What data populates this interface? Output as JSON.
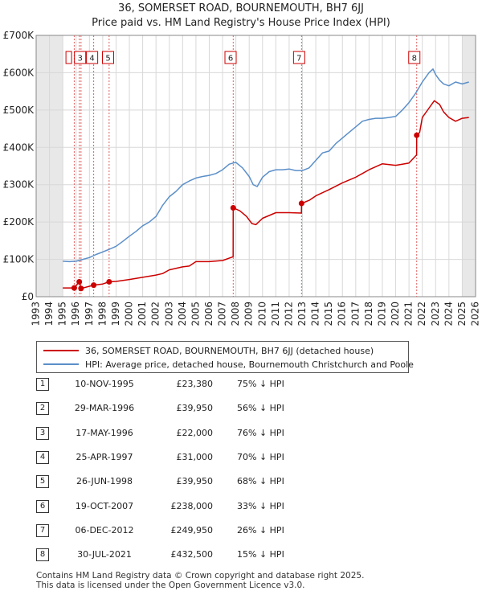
{
  "chart_data": {
    "type": "line",
    "title": "36, SOMERSET ROAD, BOURNEMOUTH, BH7 6JJ",
    "subtitle": "Price paid vs. HM Land Registry's House Price Index (HPI)",
    "xlim": [
      1993,
      2026
    ],
    "ylim": [
      0,
      700000
    ],
    "x_ticks": [
      1993,
      1994,
      1995,
      1996,
      1997,
      1998,
      1999,
      2000,
      2001,
      2002,
      2003,
      2004,
      2005,
      2006,
      2007,
      2008,
      2009,
      2010,
      2011,
      2012,
      2013,
      2014,
      2015,
      2016,
      2017,
      2018,
      2019,
      2020,
      2021,
      2022,
      2023,
      2024,
      2025,
      2026
    ],
    "y_ticks": [
      {
        "value": 0,
        "label": "£0"
      },
      {
        "value": 100000,
        "label": "£100K"
      },
      {
        "value": 200000,
        "label": "£200K"
      },
      {
        "value": 300000,
        "label": "£300K"
      },
      {
        "value": 400000,
        "label": "£400K"
      },
      {
        "value": 500000,
        "label": "£500K"
      },
      {
        "value": 600000,
        "label": "£600K"
      },
      {
        "value": 700000,
        "label": "£700K"
      }
    ],
    "series": [
      {
        "name": "36, SOMERSET ROAD, BOURNEMOUTH, BH7 6JJ (detached house)",
        "color": "#cc0000",
        "x": [
          1995.0,
          1995.86,
          1996.24,
          1996.37,
          1997.32,
          1998.0,
          1998.48,
          1999.0,
          2000.0,
          2001.0,
          2002.0,
          2002.5,
          2003.0,
          2004.0,
          2004.5,
          2005.0,
          2006.0,
          2007.0,
          2007.79,
          2007.8,
          2008.3,
          2008.8,
          2009.2,
          2009.5,
          2010.0,
          2011.0,
          2012.0,
          2012.92,
          2012.93,
          2013.5,
          2014.0,
          2015.0,
          2016.0,
          2017.0,
          2017.5,
          2018.0,
          2019.0,
          2020.0,
          2020.5,
          2021.0,
          2021.57,
          2021.58,
          2021.8,
          2022.0,
          2022.5,
          2022.9,
          2023.3,
          2023.6,
          2024.0,
          2024.5,
          2025.0,
          2025.5
        ],
        "values": [
          23380,
          23380,
          39950,
          22000,
          31000,
          34000,
          39950,
          41000,
          46000,
          52000,
          58000,
          62000,
          72000,
          80000,
          82000,
          94000,
          94000,
          97000,
          107000,
          238000,
          230000,
          215000,
          196000,
          193000,
          210000,
          225000,
          225000,
          224000,
          249950,
          258000,
          270000,
          287000,
          305000,
          320000,
          330000,
          340000,
          356000,
          352000,
          355000,
          358000,
          380000,
          432500,
          440000,
          480000,
          505000,
          525000,
          515000,
          495000,
          480000,
          470000,
          478000,
          480000
        ]
      },
      {
        "name": "HPI: Average price, detached house, Bournemouth Christchurch and Poole",
        "color": "#5b8fc9",
        "x": [
          1995.0,
          1995.5,
          1996.0,
          1996.5,
          1997.0,
          1997.5,
          1998.0,
          1998.5,
          1999.0,
          1999.5,
          2000.0,
          2000.5,
          2001.0,
          2001.5,
          2002.0,
          2002.5,
          2003.0,
          2003.5,
          2004.0,
          2004.5,
          2005.0,
          2005.5,
          2006.0,
          2006.5,
          2007.0,
          2007.5,
          2008.0,
          2008.5,
          2009.0,
          2009.3,
          2009.6,
          2010.0,
          2010.5,
          2011.0,
          2011.5,
          2012.0,
          2012.5,
          2013.0,
          2013.5,
          2014.0,
          2014.5,
          2015.0,
          2015.5,
          2016.0,
          2016.5,
          2017.0,
          2017.5,
          2018.0,
          2018.5,
          2019.0,
          2019.5,
          2020.0,
          2020.5,
          2021.0,
          2021.5,
          2022.0,
          2022.5,
          2022.8,
          2023.0,
          2023.3,
          2023.6,
          2024.0,
          2024.5,
          2025.0,
          2025.5
        ],
        "values": [
          95000,
          94000,
          95000,
          100000,
          105000,
          113000,
          120000,
          127000,
          135000,
          148000,
          162000,
          175000,
          190000,
          200000,
          215000,
          245000,
          268000,
          282000,
          300000,
          310000,
          318000,
          322000,
          325000,
          330000,
          340000,
          355000,
          360000,
          345000,
          322000,
          300000,
          295000,
          320000,
          335000,
          340000,
          340000,
          342000,
          338000,
          338000,
          345000,
          365000,
          385000,
          390000,
          410000,
          425000,
          440000,
          455000,
          470000,
          475000,
          478000,
          478000,
          480000,
          483000,
          500000,
          520000,
          545000,
          575000,
          600000,
          610000,
          595000,
          580000,
          570000,
          565000,
          575000,
          570000,
          575000
        ]
      }
    ],
    "sales": [
      {
        "num": "1",
        "x": 1995.86,
        "value": 23380,
        "date": "10-NOV-1995",
        "price": "£23,380",
        "hpi": "75% ↓ HPI"
      },
      {
        "num": "2",
        "x": 1996.24,
        "value": 39950,
        "date": "29-MAR-1996",
        "price": "£39,950",
        "hpi": "56% ↓ HPI"
      },
      {
        "num": "3",
        "x": 1996.37,
        "value": 22000,
        "date": "17-MAY-1996",
        "price": "£22,000",
        "hpi": "76% ↓ HPI"
      },
      {
        "num": "4",
        "x": 1997.32,
        "value": 31000,
        "date": "25-APR-1997",
        "price": "£31,000",
        "hpi": "70% ↓ HPI"
      },
      {
        "num": "5",
        "x": 1998.48,
        "value": 39950,
        "date": "26-JUN-1998",
        "price": "£39,950",
        "hpi": "68% ↓ HPI"
      },
      {
        "num": "6",
        "x": 2007.8,
        "value": 238000,
        "date": "19-OCT-2007",
        "price": "£238,000",
        "hpi": "33% ↓ HPI"
      },
      {
        "num": "7",
        "x": 2012.93,
        "value": 249950,
        "date": "06-DEC-2012",
        "price": "£249,950",
        "hpi": "26% ↓ HPI"
      },
      {
        "num": "8",
        "x": 2021.58,
        "value": 432500,
        "date": "30-JUL-2021",
        "price": "£432,500",
        "hpi": "15% ↓ HPI"
      }
    ],
    "chart_labels": [
      "3",
      "4",
      "5",
      "6",
      "7",
      "8"
    ],
    "shaded_ranges": [
      [
        1993,
        1995
      ],
      [
        2025,
        2026
      ]
    ]
  },
  "legend": {
    "red_label": "36, SOMERSET ROAD, BOURNEMOUTH, BH7 6JJ (detached house)",
    "blue_label": "HPI: Average price, detached house, Bournemouth Christchurch and Poole"
  },
  "footer": {
    "line1": "Contains HM Land Registry data © Crown copyright and database right 2025.",
    "line2": "This data is licensed under the Open Government Licence v3.0."
  },
  "colors": {
    "red": "#cc0000",
    "blue": "#5b8fc9",
    "grid": "#d8d8d8",
    "shade": "#e8e8e8"
  }
}
